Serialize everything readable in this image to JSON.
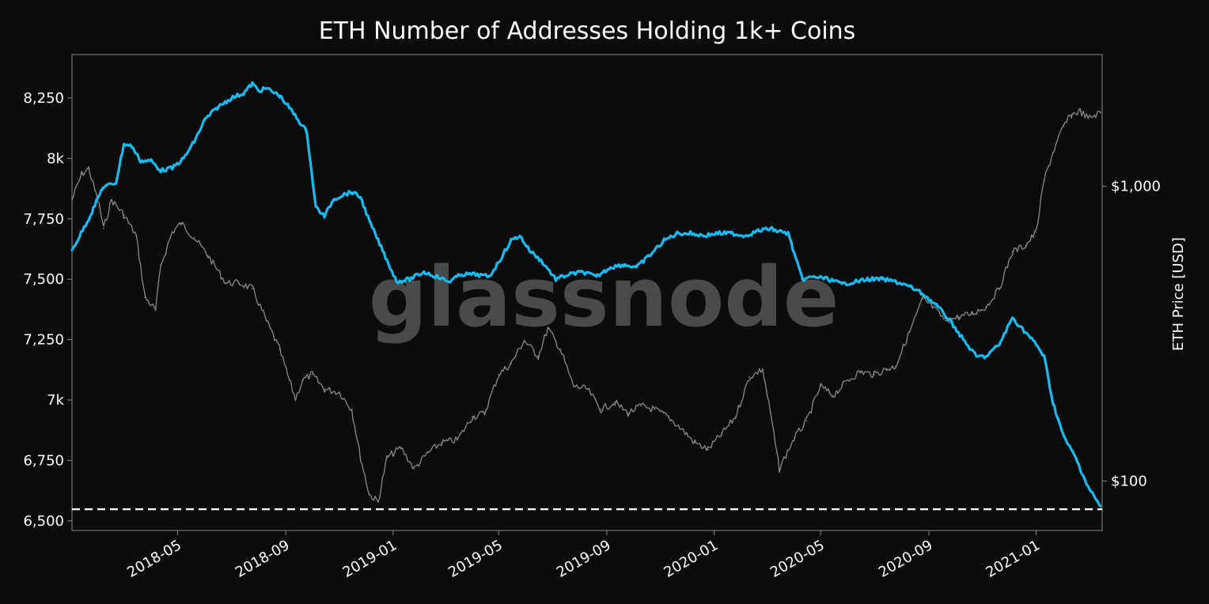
{
  "colors": {
    "background": "#0c0c0c",
    "holders_line": "#1ab9f0",
    "price_line": "#8a8a8a",
    "threshold_line": "#ffffff",
    "watermark": "#5a5a5a"
  },
  "watermark": "glassnode",
  "chart_data": {
    "type": "line",
    "title": "ETH Number of Addresses Holding 1k+ Coins",
    "xlabel": "",
    "ylabel": "",
    "y2label": "ETH Price [USD]",
    "x_ticks": [
      "2018-05",
      "2018-09",
      "2019-01",
      "2019-05",
      "2019-09",
      "2020-01",
      "2020-05",
      "2020-09",
      "2021-01"
    ],
    "y_ticks": [
      {
        "value": 6500,
        "label": "6,500"
      },
      {
        "value": 6750,
        "label": "6,750"
      },
      {
        "value": 7000,
        "label": "7k"
      },
      {
        "value": 7250,
        "label": "7,250"
      },
      {
        "value": 7500,
        "label": "7,500"
      },
      {
        "value": 7750,
        "label": "7,750"
      },
      {
        "value": 8000,
        "label": "8k"
      },
      {
        "value": 8250,
        "label": "8,250"
      }
    ],
    "y2_ticks": [
      {
        "value": 100,
        "label": "$100"
      },
      {
        "value": 1000,
        "label": "$1,000"
      }
    ],
    "xlim": [
      "2018-01-01",
      "2021-03-17"
    ],
    "ylim": [
      6460,
      8430
    ],
    "y2lim": [
      68,
      2800
    ],
    "y2_scale": "log",
    "grid": false,
    "legend": "none",
    "threshold": {
      "value": 6548,
      "style": "dashed"
    },
    "series": [
      {
        "role": "holders",
        "axis": "left",
        "x": [
          "2018-01-01",
          "2018-01-20",
          "2018-02-05",
          "2018-02-20",
          "2018-03-01",
          "2018-03-10",
          "2018-03-20",
          "2018-04-01",
          "2018-04-12",
          "2018-04-25",
          "2018-05-08",
          "2018-05-20",
          "2018-06-01",
          "2018-06-15",
          "2018-07-01",
          "2018-07-15",
          "2018-07-25",
          "2018-08-01",
          "2018-08-10",
          "2018-08-25",
          "2018-09-05",
          "2018-09-15",
          "2018-09-25",
          "2018-10-05",
          "2018-10-15",
          "2018-10-25",
          "2018-11-05",
          "2018-11-15",
          "2018-11-25",
          "2018-12-05",
          "2018-12-15",
          "2018-12-25",
          "2019-01-05",
          "2019-01-20",
          "2019-02-05",
          "2019-02-20",
          "2019-03-05",
          "2019-03-20",
          "2019-04-05",
          "2019-04-20",
          "2019-05-01",
          "2019-05-15",
          "2019-05-25",
          "2019-06-05",
          "2019-06-20",
          "2019-07-05",
          "2019-07-20",
          "2019-08-05",
          "2019-08-20",
          "2019-09-05",
          "2019-09-20",
          "2019-10-05",
          "2019-10-20",
          "2019-11-05",
          "2019-11-20",
          "2019-12-05",
          "2019-12-20",
          "2020-01-05",
          "2020-01-20",
          "2020-02-05",
          "2020-02-20",
          "2020-03-05",
          "2020-03-12",
          "2020-03-25",
          "2020-04-10",
          "2020-04-25",
          "2020-05-10",
          "2020-05-25",
          "2020-06-10",
          "2020-06-25",
          "2020-07-10",
          "2020-07-25",
          "2020-08-10",
          "2020-08-25",
          "2020-09-10",
          "2020-09-25",
          "2020-10-10",
          "2020-10-25",
          "2020-11-05",
          "2020-11-20",
          "2020-12-05",
          "2020-12-20",
          "2021-01-01",
          "2021-01-10",
          "2021-01-20",
          "2021-02-01",
          "2021-02-15",
          "2021-03-01",
          "2021-03-15"
        ],
        "values": [
          7620,
          7750,
          7880,
          7900,
          8060,
          8050,
          7990,
          7990,
          7950,
          7960,
          8000,
          8070,
          8160,
          8210,
          8250,
          8270,
          8310,
          8280,
          8290,
          8260,
          8210,
          8160,
          8110,
          7800,
          7760,
          7830,
          7850,
          7860,
          7840,
          7740,
          7660,
          7580,
          7490,
          7500,
          7530,
          7510,
          7490,
          7520,
          7520,
          7510,
          7570,
          7660,
          7680,
          7620,
          7570,
          7500,
          7520,
          7530,
          7510,
          7550,
          7560,
          7550,
          7600,
          7660,
          7690,
          7690,
          7680,
          7690,
          7690,
          7680,
          7700,
          7710,
          7700,
          7690,
          7500,
          7510,
          7500,
          7480,
          7490,
          7500,
          7500,
          7490,
          7470,
          7440,
          7390,
          7330,
          7250,
          7180,
          7180,
          7230,
          7340,
          7280,
          7230,
          7180,
          6990,
          6850,
          6760,
          6640,
          6560
        ]
      },
      {
        "role": "price",
        "axis": "right",
        "x": [
          "2018-01-01",
          "2018-01-12",
          "2018-01-20",
          "2018-02-01",
          "2018-02-06",
          "2018-02-15",
          "2018-03-01",
          "2018-03-15",
          "2018-03-25",
          "2018-04-06",
          "2018-04-12",
          "2018-04-25",
          "2018-05-05",
          "2018-05-20",
          "2018-06-05",
          "2018-06-25",
          "2018-07-10",
          "2018-07-25",
          "2018-08-10",
          "2018-08-25",
          "2018-09-05",
          "2018-09-12",
          "2018-09-20",
          "2018-10-01",
          "2018-10-15",
          "2018-11-01",
          "2018-11-15",
          "2018-11-25",
          "2018-12-05",
          "2018-12-15",
          "2018-12-25",
          "2019-01-10",
          "2019-01-25",
          "2019-02-10",
          "2019-02-25",
          "2019-03-15",
          "2019-04-01",
          "2019-04-15",
          "2019-05-01",
          "2019-05-15",
          "2019-05-30",
          "2019-06-15",
          "2019-06-26",
          "2019-07-10",
          "2019-07-25",
          "2019-08-10",
          "2019-08-25",
          "2019-09-10",
          "2019-09-25",
          "2019-10-10",
          "2019-10-25",
          "2019-11-10",
          "2019-11-25",
          "2019-12-10",
          "2019-12-25",
          "2020-01-10",
          "2020-01-25",
          "2020-02-10",
          "2020-02-25",
          "2020-03-05",
          "2020-03-12",
          "2020-03-15",
          "2020-04-01",
          "2020-04-15",
          "2020-05-01",
          "2020-05-15",
          "2020-06-01",
          "2020-06-15",
          "2020-07-01",
          "2020-07-15",
          "2020-07-25",
          "2020-08-10",
          "2020-08-25",
          "2020-09-05",
          "2020-09-20",
          "2020-10-05",
          "2020-10-20",
          "2020-11-05",
          "2020-11-20",
          "2020-12-05",
          "2020-12-20",
          "2021-01-01",
          "2021-01-10",
          "2021-01-20",
          "2021-02-01",
          "2021-02-10",
          "2021-02-20",
          "2021-03-01",
          "2021-03-15"
        ],
        "values": [
          900,
          1100,
          1150,
          860,
          720,
          900,
          800,
          680,
          420,
          380,
          540,
          700,
          750,
          670,
          580,
          470,
          470,
          450,
          350,
          280,
          220,
          190,
          220,
          230,
          205,
          200,
          175,
          120,
          90,
          85,
          120,
          130,
          110,
          125,
          135,
          138,
          165,
          170,
          230,
          250,
          300,
          265,
          330,
          280,
          210,
          205,
          175,
          185,
          170,
          180,
          175,
          165,
          150,
          135,
          128,
          145,
          165,
          225,
          240,
          170,
          125,
          110,
          140,
          160,
          210,
          195,
          220,
          235,
          230,
          240,
          245,
          320,
          415,
          390,
          350,
          360,
          370,
          390,
          450,
          600,
          630,
          700,
          1050,
          1300,
          1600,
          1750,
          1800,
          1700,
          1780
        ]
      }
    ]
  }
}
